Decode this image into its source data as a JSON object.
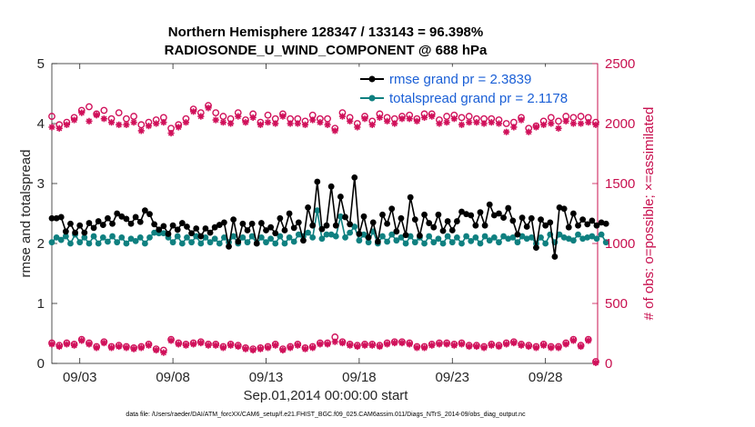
{
  "chart_data": {
    "type": "line",
    "title_line1": "Northern Hemisphere 128347 / 133143 = 96.398%",
    "title_line2": "RADIOSONDE_U_WIND_COMPONENT @ 688 hPa",
    "xlabel": "Sep.01,2014 00:00:00 start",
    "ylabel_left": "rmse and totalspread",
    "ylabel_right": "# of obs: o=possible; ×=assimilated",
    "footnote": "data file: /Users/raeder/DAI/ATM_forcXX/CAM6_setup/f.e21.FHIST_BGC.f09_025.CAM6assim.011/Diags_NTrS_2014-09/obs_diag_output.nc",
    "xlim": [
      1.5,
      30.8
    ],
    "ylim_left": [
      0,
      5
    ],
    "ylim_right": [
      0,
      2500
    ],
    "x_ticks": [
      3,
      8,
      13,
      18,
      23,
      28
    ],
    "x_tick_labels": [
      "09/03",
      "09/08",
      "09/13",
      "09/18",
      "09/23",
      "09/28"
    ],
    "y_left_ticks": [
      0,
      1,
      2,
      3,
      4,
      5
    ],
    "y_left_tick_labels": [
      "0",
      "1",
      "2",
      "3",
      "4",
      "5"
    ],
    "y_right_ticks": [
      0,
      500,
      1000,
      1500,
      2000,
      2500
    ],
    "y_right_tick_labels": [
      "0",
      "500",
      "1000",
      "1500",
      "2000",
      "2500"
    ],
    "x_start": 1.5,
    "x_step": 0.25,
    "legend": [
      {
        "label": "rmse grand pr = 2.3839",
        "color": "#000000"
      },
      {
        "label": "totalspread grand pr = 2.1178",
        "color": "#0f8080"
      }
    ],
    "colors": {
      "rmse": "#000000",
      "spread": "#0f8080",
      "obs": "#d0105a"
    },
    "series_rmse": [
      2.42,
      2.42,
      2.44,
      2.2,
      2.33,
      2.18,
      2.3,
      2.18,
      2.34,
      2.26,
      2.37,
      2.31,
      2.42,
      2.33,
      2.5,
      2.45,
      2.41,
      2.33,
      2.44,
      2.36,
      2.55,
      2.49,
      2.32,
      2.23,
      2.29,
      2.16,
      2.3,
      2.23,
      2.34,
      2.28,
      2.17,
      2.25,
      2.12,
      2.25,
      2.18,
      2.27,
      2.31,
      2.35,
      1.95,
      2.4,
      2.03,
      2.33,
      2.22,
      2.33,
      2.0,
      2.34,
      2.22,
      2.27,
      2.17,
      2.42,
      2.22,
      2.5,
      2.26,
      2.35,
      2.05,
      2.6,
      2.3,
      3.03,
      2.24,
      2.3,
      2.95,
      2.3,
      2.78,
      2.44,
      2.32,
      3.1,
      2.16,
      2.45,
      2.1,
      2.35,
      2.03,
      2.48,
      2.33,
      2.58,
      2.2,
      2.42,
      2.14,
      2.77,
      2.4,
      2.13,
      2.48,
      2.34,
      2.27,
      2.48,
      2.21,
      2.37,
      2.22,
      2.37,
      2.53,
      2.49,
      2.47,
      2.3,
      2.52,
      2.3,
      2.65,
      2.47,
      2.5,
      2.43,
      2.59,
      2.38,
      2.15,
      2.43,
      2.28,
      2.42,
      1.93,
      2.4,
      2.3,
      2.35,
      1.78,
      2.6,
      2.58,
      2.27,
      2.5,
      2.3,
      2.4,
      2.32,
      2.38,
      2.3,
      2.35,
      2.33
    ],
    "series_spread": [
      2.02,
      2.1,
      2.06,
      2.12,
      2.0,
      2.15,
      2.02,
      2.1,
      2.0,
      2.12,
      2.0,
      2.1,
      2.03,
      2.12,
      2.02,
      2.1,
      2.0,
      2.08,
      2.04,
      2.1,
      2.0,
      2.1,
      2.18,
      2.17,
      2.17,
      2.1,
      2.02,
      2.12,
      2.0,
      2.1,
      2.02,
      2.12,
      2.0,
      2.1,
      2.02,
      2.08,
      2.0,
      2.1,
      2.02,
      2.12,
      2.0,
      2.1,
      2.02,
      2.12,
      2.0,
      2.1,
      2.02,
      2.08,
      2.0,
      2.12,
      2.0,
      2.1,
      2.03,
      2.15,
      2.12,
      2.18,
      2.1,
      2.55,
      2.08,
      2.15,
      2.15,
      2.12,
      2.45,
      2.1,
      2.18,
      2.28,
      2.05,
      2.15,
      2.02,
      2.2,
      2.0,
      2.12,
      2.03,
      2.15,
      2.05,
      2.1,
      2.0,
      2.12,
      2.02,
      2.1,
      2.0,
      2.12,
      2.02,
      2.08,
      2.0,
      2.12,
      2.02,
      2.1,
      2.0,
      2.12,
      2.04,
      2.1,
      2.0,
      2.12,
      2.05,
      2.1,
      2.02,
      2.12,
      2.08,
      2.1,
      2.02,
      2.12,
      2.08,
      2.1,
      2.0,
      2.1,
      2.0,
      2.15,
      2.02,
      2.15,
      2.1,
      2.08,
      2.05,
      2.15,
      2.08,
      2.1,
      2.12,
      2.08,
      2.15,
      2.02
    ],
    "obs_x": [
      1.5,
      1.9,
      2.3,
      2.7,
      3.1,
      3.5,
      3.9,
      4.3,
      4.7,
      5.1,
      5.5,
      5.9,
      6.3,
      6.7,
      7.1,
      7.5,
      7.9,
      8.3,
      8.7,
      9.1,
      9.5,
      9.9,
      10.3,
      10.7,
      11.1,
      11.5,
      11.9,
      12.3,
      12.7,
      13.1,
      13.5,
      13.9,
      14.3,
      14.7,
      15.1,
      15.5,
      15.9,
      16.3,
      16.7,
      17.1,
      17.5,
      17.9,
      18.3,
      18.7,
      19.1,
      19.5,
      19.9,
      20.3,
      20.7,
      21.1,
      21.5,
      21.9,
      22.3,
      22.7,
      23.1,
      23.5,
      23.9,
      24.3,
      24.7,
      25.1,
      25.5,
      25.9,
      26.3,
      26.7,
      27.1,
      27.5,
      27.9,
      28.3,
      28.7,
      29.1,
      29.5,
      29.9,
      30.3,
      30.7
    ],
    "obs_possible_high": [
      2060,
      1990,
      2010,
      2050,
      2110,
      2140,
      2080,
      2110,
      2040,
      2090,
      2040,
      2060,
      1990,
      2010,
      2030,
      2050,
      1960,
      1990,
      2040,
      2120,
      2090,
      2150,
      2090,
      2060,
      2040,
      2090,
      2030,
      2080,
      2010,
      2070,
      2040,
      2080,
      2040,
      2040,
      2020,
      2070,
      2040,
      2040,
      1960,
      2090,
      2050,
      2000,
      2060,
      2020,
      2080,
      2050,
      2040,
      2060,
      2070,
      2040,
      2080,
      2080,
      2030,
      2060,
      2070,
      2050,
      2060,
      2040,
      2040,
      2040,
      2030,
      2000,
      2010,
      2050,
      1960,
      1980,
      2020,
      2050,
      2020,
      2060,
      2050,
      2060,
      2050,
      2010
    ],
    "obs_assim_high": [
      1970,
      1960,
      1990,
      2030,
      2090,
      2020,
      2070,
      2040,
      2010,
      1990,
      1990,
      2010,
      1940,
      1980,
      2000,
      2010,
      1920,
      1970,
      2010,
      2100,
      2060,
      2130,
      2030,
      2010,
      2000,
      2060,
      2010,
      2050,
      1990,
      2010,
      2000,
      2060,
      2000,
      2000,
      1990,
      2030,
      2010,
      1990,
      1940,
      2060,
      2020,
      1970,
      2040,
      1990,
      2050,
      2020,
      2000,
      2040,
      2040,
      2020,
      2050,
      2060,
      2000,
      2010,
      2040,
      1990,
      2010,
      2010,
      2000,
      2010,
      2000,
      1930,
      1970,
      2030,
      1930,
      1970,
      1990,
      2000,
      1960,
      2020,
      2000,
      2000,
      2010,
      1990
    ],
    "obs_possible_low": [
      170,
      150,
      170,
      160,
      200,
      170,
      140,
      180,
      140,
      150,
      140,
      130,
      140,
      160,
      120,
      110,
      200,
      170,
      160,
      170,
      180,
      160,
      160,
      140,
      160,
      150,
      130,
      120,
      130,
      140,
      160,
      120,
      140,
      160,
      130,
      140,
      170,
      170,
      220,
      180,
      160,
      150,
      160,
      160,
      150,
      170,
      180,
      180,
      170,
      140,
      140,
      160,
      170,
      170,
      160,
      170,
      150,
      150,
      140,
      160,
      150,
      170,
      180,
      160,
      150,
      140,
      160,
      140,
      140,
      170,
      200,
      150,
      200,
      15
    ],
    "obs_assim_low": [
      160,
      140,
      160,
      150,
      190,
      160,
      130,
      170,
      130,
      140,
      130,
      120,
      130,
      150,
      110,
      90,
      190,
      160,
      150,
      160,
      170,
      150,
      150,
      130,
      150,
      140,
      120,
      110,
      120,
      130,
      150,
      110,
      130,
      150,
      120,
      130,
      160,
      160,
      180,
      170,
      150,
      140,
      150,
      150,
      140,
      160,
      170,
      170,
      160,
      130,
      130,
      150,
      160,
      160,
      150,
      160,
      140,
      140,
      130,
      150,
      140,
      160,
      170,
      150,
      140,
      130,
      150,
      130,
      130,
      160,
      190,
      140,
      190,
      5
    ]
  }
}
